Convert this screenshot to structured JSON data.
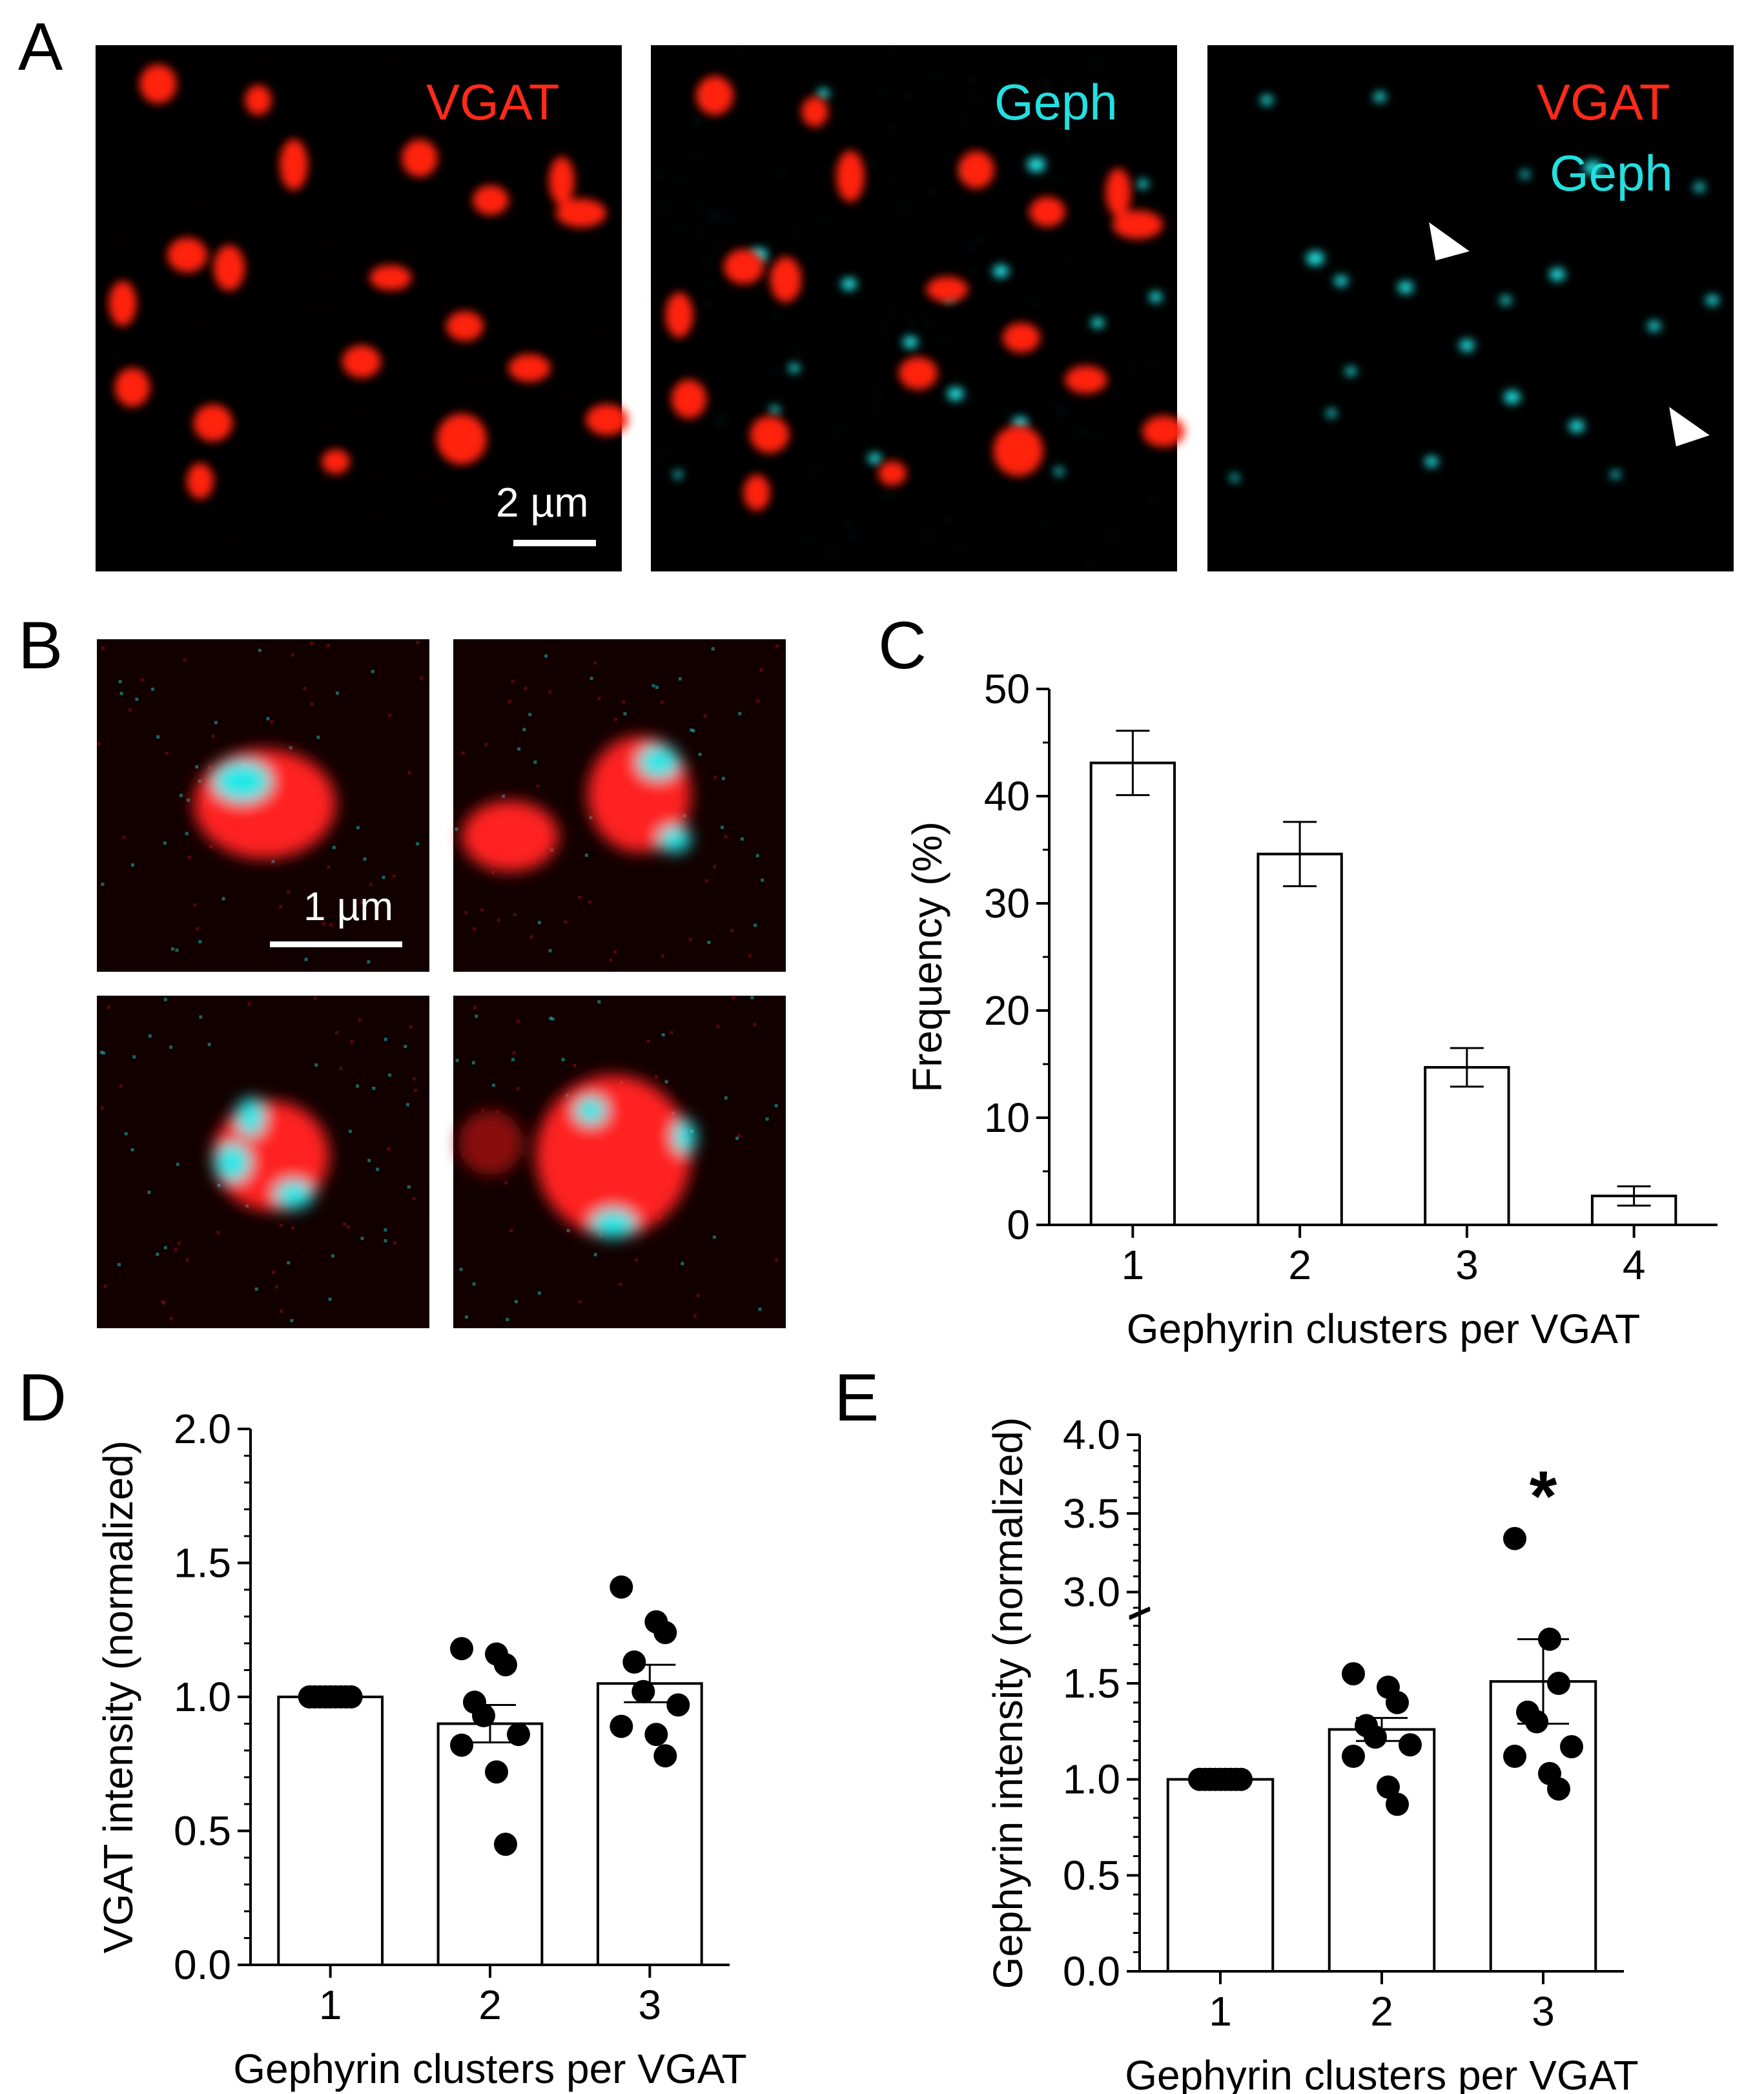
{
  "figure": {
    "panel_letters": {
      "A": "A",
      "B": "B",
      "C": "C",
      "D": "D",
      "E": "E"
    },
    "panel_a": {
      "label_vgat": "VGAT",
      "label_geph": "Geph",
      "merge_label_vgat": "VGAT",
      "merge_label_geph": "Geph",
      "scale_bar": "2 µm"
    },
    "panel_b": {
      "scale_bar": "1 µm"
    },
    "colors": {
      "vgat": "#ff2a1a",
      "geph": "#22e0e0",
      "axis": "#000000",
      "bar_fill": "#ffffff",
      "background": "#000000"
    }
  },
  "chart_data": [
    {
      "panel": "C",
      "type": "bar",
      "categories": [
        "1",
        "2",
        "3",
        "4"
      ],
      "values": [
        43.1,
        34.6,
        14.7,
        2.7
      ],
      "errors": [
        3.0,
        3.0,
        1.8,
        0.9
      ],
      "xlabel": "Gephyrin clusters per VGAT",
      "ylabel": "Frequency (%)",
      "ylim": [
        0,
        50
      ],
      "yticks": [
        "0",
        "10",
        "20",
        "30",
        "40",
        "50"
      ]
    },
    {
      "panel": "D",
      "type": "bar",
      "categories": [
        "1",
        "2",
        "3"
      ],
      "values": [
        1.0,
        0.9,
        1.05
      ],
      "errors": [
        0.0,
        0.07,
        0.07
      ],
      "points": [
        [
          1.0,
          1.0,
          1.0,
          1.0,
          1.0,
          1.0,
          1.0,
          1.0,
          1.0
        ],
        [
          1.18,
          1.16,
          1.12,
          0.98,
          0.93,
          0.86,
          0.82,
          0.72,
          0.45
        ],
        [
          1.41,
          1.28,
          1.24,
          1.13,
          1.02,
          0.97,
          0.89,
          0.86,
          0.78
        ]
      ],
      "xlabel": "Gephyrin clusters per VGAT",
      "ylabel": "VGAT intensity (normalized)",
      "ylim": [
        0,
        2.0
      ],
      "yticks": [
        "0.0",
        "0.5",
        "1.0",
        "1.5",
        "2.0"
      ]
    },
    {
      "panel": "E",
      "type": "bar",
      "categories": [
        "1",
        "2",
        "3"
      ],
      "values": [
        1.0,
        1.26,
        1.51
      ],
      "errors": [
        0.0,
        0.06,
        0.22
      ],
      "points": [
        [
          1.0,
          1.0,
          1.0,
          1.0,
          1.0,
          1.0,
          1.0,
          1.0,
          1.0
        ],
        [
          1.55,
          1.48,
          1.4,
          1.28,
          1.22,
          1.18,
          1.12,
          0.96,
          0.87
        ],
        [
          3.34,
          1.73,
          1.5,
          1.35,
          1.3,
          1.17,
          1.12,
          1.03,
          0.95
        ]
      ],
      "significance": "*",
      "xlabel": "Gephyrin clusters per VGAT",
      "ylabel": "Gephyrin intensity (normalized)",
      "axis_break": [
        1.85,
        2.9
      ],
      "ylim": [
        0,
        4.0
      ],
      "yticks_lower": [
        "0.0",
        "0.5",
        "1.0",
        "1.5"
      ],
      "yticks_upper": [
        "3.0",
        "3.5",
        "4.0"
      ]
    }
  ]
}
